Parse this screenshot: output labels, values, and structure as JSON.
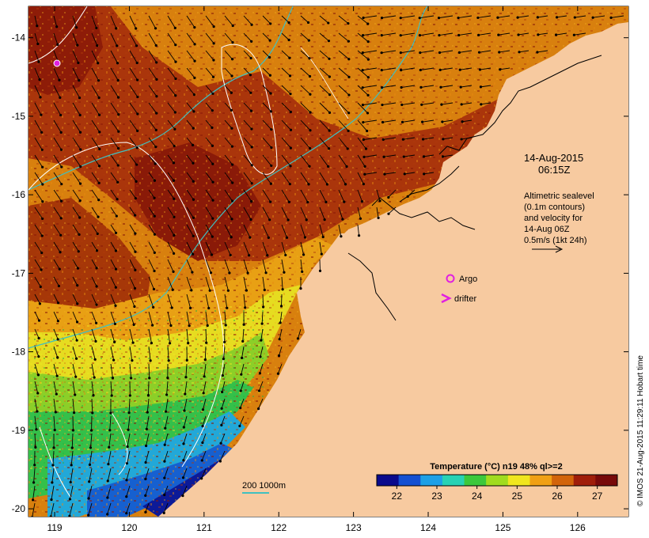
{
  "map": {
    "lon_ticks": [
      "119",
      "120",
      "121",
      "122",
      "123",
      "124",
      "125",
      "126"
    ],
    "lat_ticks": [
      "-14",
      "-15",
      "-16",
      "-17",
      "-18",
      "-19",
      "-20"
    ],
    "lon_range": [
      118.65,
      126.68
    ],
    "lat_range": [
      -20.1,
      -13.6
    ]
  },
  "annotations": {
    "date": "14-Aug-2015",
    "time": "06:15Z",
    "sealevel_line1": "Altimetric sealevel",
    "sealevel_line2": "(0.1m contours)",
    "sealevel_line3": "and velocity for",
    "sealevel_line4": "14-Aug 06Z",
    "velocity_scale": "0.5m/s (1kt 24h)",
    "argo_label": "Argo",
    "drifter_label": "drifter",
    "depth_legend": "200  1000m"
  },
  "colorbar": {
    "title": "Temperature (°C) n19 48% ql>=2",
    "ticks": [
      "22",
      "23",
      "24",
      "25",
      "26",
      "27"
    ],
    "range": [
      21.5,
      27.5
    ],
    "colors": [
      "#0a0a8c",
      "#1450d2",
      "#1ea0e6",
      "#28d2b4",
      "#3cc83c",
      "#a0dc1e",
      "#f0e61e",
      "#f0a014",
      "#d2640a",
      "#a01e0a",
      "#780a0a"
    ]
  },
  "credit": "© IMOS 21-Aug-2015 11:29:11 Hobart time",
  "colors": {
    "land": "#f7caa0",
    "argo": "#e020e0",
    "isobath": "#40c0c0",
    "contour": "#ffffff"
  }
}
